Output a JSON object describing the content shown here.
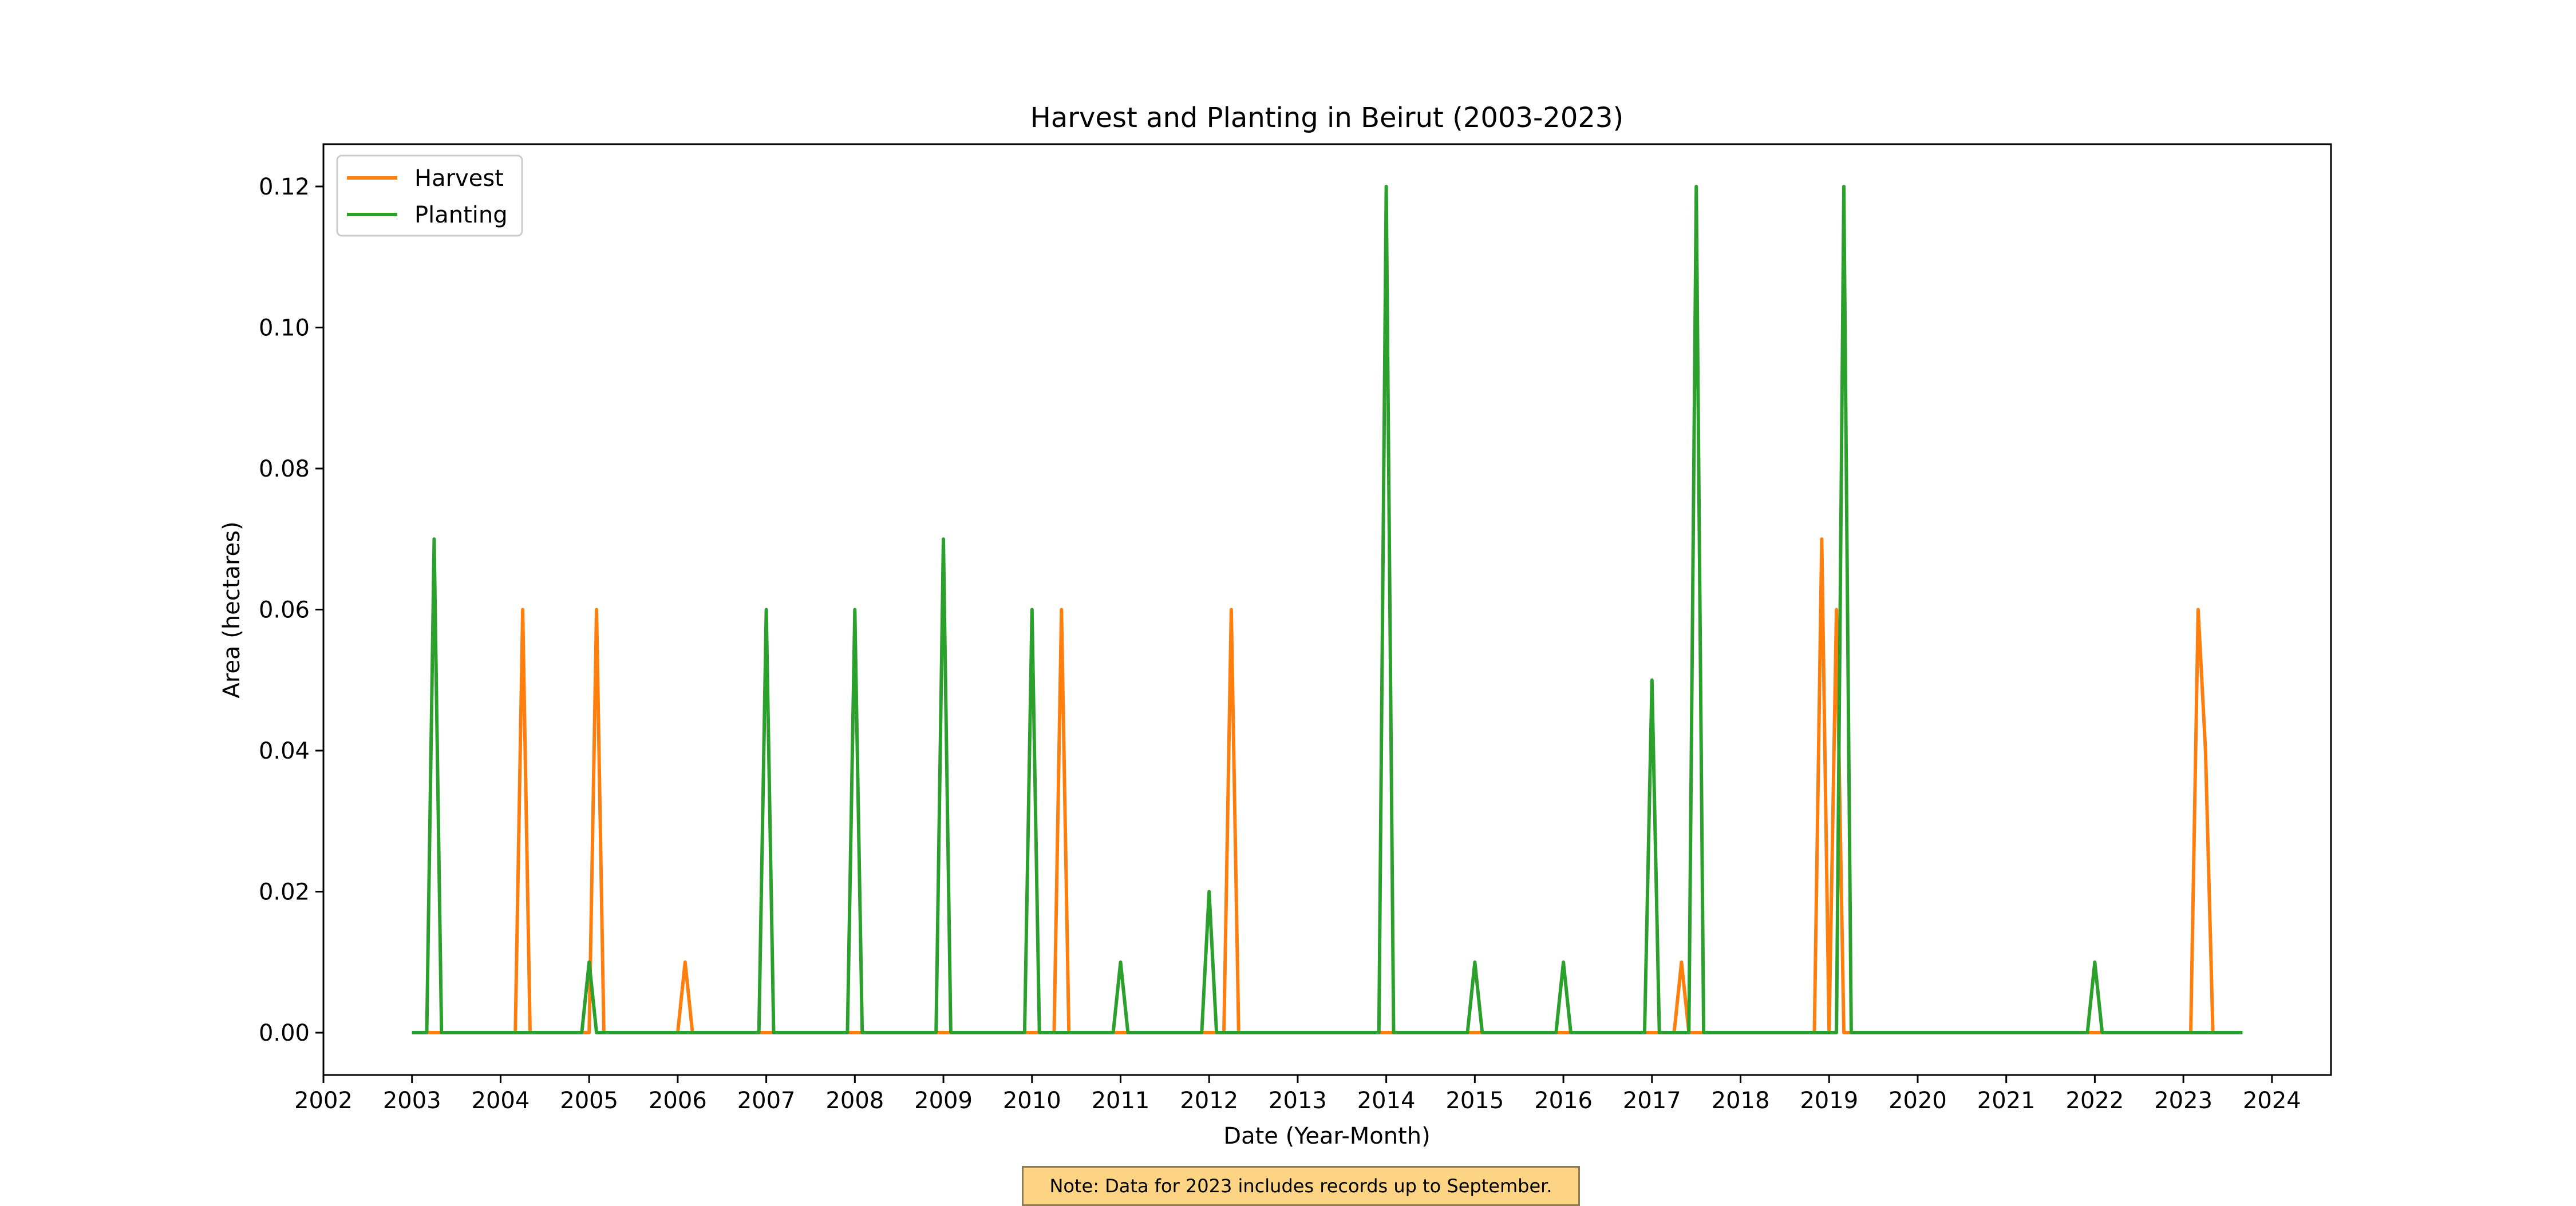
{
  "chart_data": {
    "type": "line",
    "title": "Harvest and Planting in Beirut (2003-2023)",
    "xlabel": "Date (Year-Month)",
    "ylabel": "Area (hectares)",
    "xlim": [
      "2002-01",
      "2024-09"
    ],
    "ylim": [
      -0.006,
      0.126
    ],
    "x_ticks": [
      "2002",
      "2003",
      "2004",
      "2005",
      "2006",
      "2007",
      "2008",
      "2009",
      "2010",
      "2011",
      "2012",
      "2013",
      "2014",
      "2015",
      "2016",
      "2017",
      "2018",
      "2019",
      "2020",
      "2021",
      "2022",
      "2023",
      "2024"
    ],
    "y_ticks": [
      0.0,
      0.02,
      0.04,
      0.06,
      0.08,
      0.1,
      0.12
    ],
    "y_tick_labels": [
      "0.00",
      "0.02",
      "0.04",
      "0.06",
      "0.08",
      "0.10",
      "0.12"
    ],
    "grid": false,
    "legend_position": "top-left",
    "series": [
      {
        "name": "Harvest",
        "color": "#ff7f0e",
        "points": [
          [
            "2003-01",
            0
          ],
          [
            "2004-03",
            0
          ],
          [
            "2004-04",
            0.06
          ],
          [
            "2004-05",
            0
          ],
          [
            "2005-01",
            0
          ],
          [
            "2005-02",
            0.06
          ],
          [
            "2005-03",
            0
          ],
          [
            "2006-01",
            0
          ],
          [
            "2006-02",
            0.01
          ],
          [
            "2006-03",
            0
          ],
          [
            "2010-04",
            0
          ],
          [
            "2010-05",
            0.06
          ],
          [
            "2010-06",
            0
          ],
          [
            "2012-03",
            0
          ],
          [
            "2012-04",
            0.06
          ],
          [
            "2012-05",
            0
          ],
          [
            "2017-04",
            0
          ],
          [
            "2017-05",
            0.01
          ],
          [
            "2017-06",
            0
          ],
          [
            "2018-11",
            0
          ],
          [
            "2018-12",
            0.07
          ],
          [
            "2019-01",
            0
          ],
          [
            "2019-02",
            0.06
          ],
          [
            "2019-03",
            0
          ],
          [
            "2023-02",
            0
          ],
          [
            "2023-03",
            0.06
          ],
          [
            "2023-04",
            0.04
          ],
          [
            "2023-05",
            0
          ],
          [
            "2023-09",
            0
          ]
        ]
      },
      {
        "name": "Planting",
        "color": "#2ca02c",
        "points": [
          [
            "2003-01",
            0
          ],
          [
            "2003-03",
            0
          ],
          [
            "2003-04",
            0.07
          ],
          [
            "2003-05",
            0
          ],
          [
            "2004-12",
            0
          ],
          [
            "2005-01",
            0.01
          ],
          [
            "2005-02",
            0
          ],
          [
            "2006-12",
            0
          ],
          [
            "2007-01",
            0.06
          ],
          [
            "2007-02",
            0
          ],
          [
            "2007-12",
            0
          ],
          [
            "2008-01",
            0.06
          ],
          [
            "2008-02",
            0
          ],
          [
            "2008-12",
            0
          ],
          [
            "2009-01",
            0.07
          ],
          [
            "2009-02",
            0
          ],
          [
            "2009-12",
            0
          ],
          [
            "2010-01",
            0.06
          ],
          [
            "2010-02",
            0
          ],
          [
            "2010-12",
            0
          ],
          [
            "2011-01",
            0.01
          ],
          [
            "2011-02",
            0
          ],
          [
            "2011-12",
            0
          ],
          [
            "2012-01",
            0.02
          ],
          [
            "2012-02",
            0
          ],
          [
            "2013-12",
            0
          ],
          [
            "2014-01",
            0.12
          ],
          [
            "2014-02",
            0
          ],
          [
            "2014-12",
            0
          ],
          [
            "2015-01",
            0.01
          ],
          [
            "2015-02",
            0
          ],
          [
            "2015-12",
            0
          ],
          [
            "2016-01",
            0.01
          ],
          [
            "2016-02",
            0
          ],
          [
            "2016-12",
            0
          ],
          [
            "2017-01",
            0.05
          ],
          [
            "2017-02",
            0
          ],
          [
            "2017-06",
            0
          ],
          [
            "2017-07",
            0.12
          ],
          [
            "2017-08",
            0
          ],
          [
            "2019-02",
            0
          ],
          [
            "2019-03",
            0.12
          ],
          [
            "2019-04",
            0
          ],
          [
            "2021-12",
            0
          ],
          [
            "2022-01",
            0.01
          ],
          [
            "2022-02",
            0
          ],
          [
            "2023-09",
            0
          ]
        ]
      }
    ]
  },
  "note": "Note: Data for 2023 includes records up to September."
}
